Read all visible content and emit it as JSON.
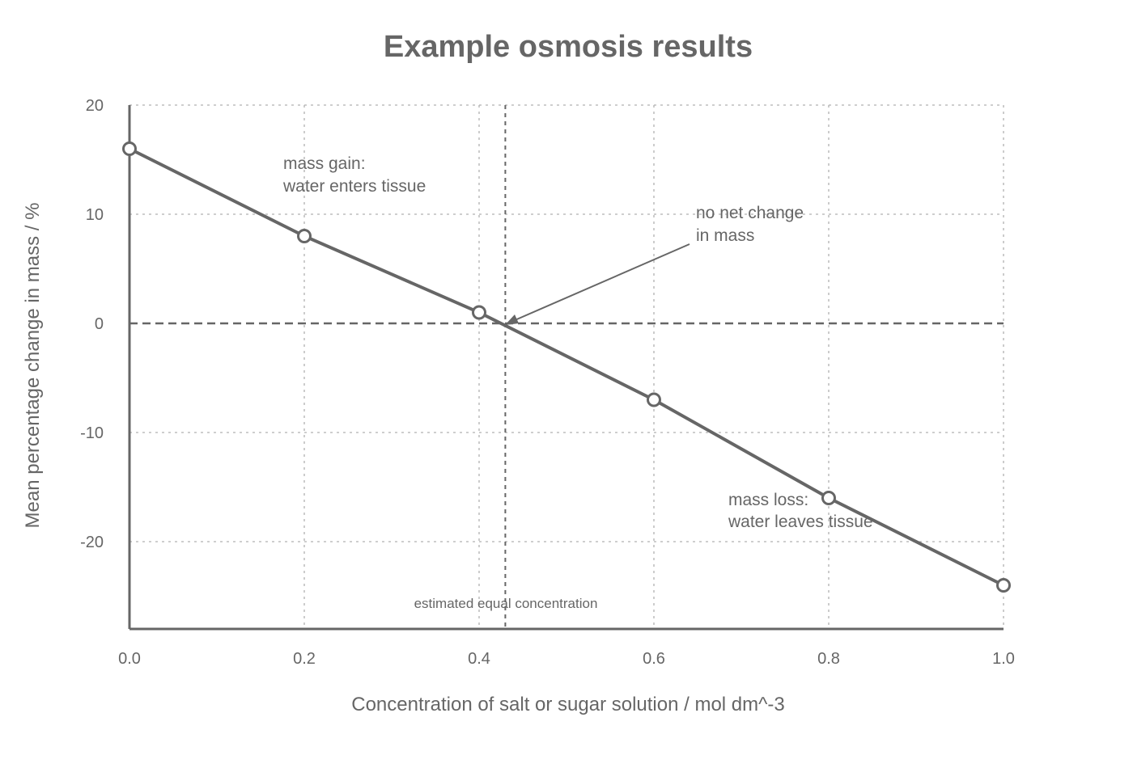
{
  "chart_data": {
    "type": "line",
    "title": "Example osmosis results",
    "xlabel": "Concentration of salt or sugar solution / mol dm^-3",
    "ylabel": "Mean percentage change in mass / %",
    "xlim": [
      0.0,
      1.0
    ],
    "ylim": [
      -28,
      20
    ],
    "x_ticks": [
      "0.0",
      "0.2",
      "0.4",
      "0.6",
      "0.8",
      "1.0"
    ],
    "y_ticks": [
      "20",
      "10",
      "0",
      "-10",
      "-20"
    ],
    "grid": true,
    "series": [
      {
        "x": [
          0.0,
          0.2,
          0.4,
          0.6,
          0.8,
          1.0
        ],
        "y": [
          16,
          8,
          1,
          -7,
          -16,
          -24
        ]
      }
    ],
    "reference_lines": {
      "horizontal_y": 0,
      "vertical_x": 0.43
    },
    "annotations": {
      "gain_line1": "mass gain:",
      "gain_line2": "water enters tissue",
      "loss_line1": "mass loss:",
      "loss_line2": "water leaves tissue",
      "nonet_line1": "no net change",
      "nonet_line2": "in mass",
      "equal_label": "estimated equal concentration"
    },
    "colors": {
      "line": "#666666",
      "grid": "#b0b0b0",
      "marker_fill": "#ffffff"
    }
  }
}
